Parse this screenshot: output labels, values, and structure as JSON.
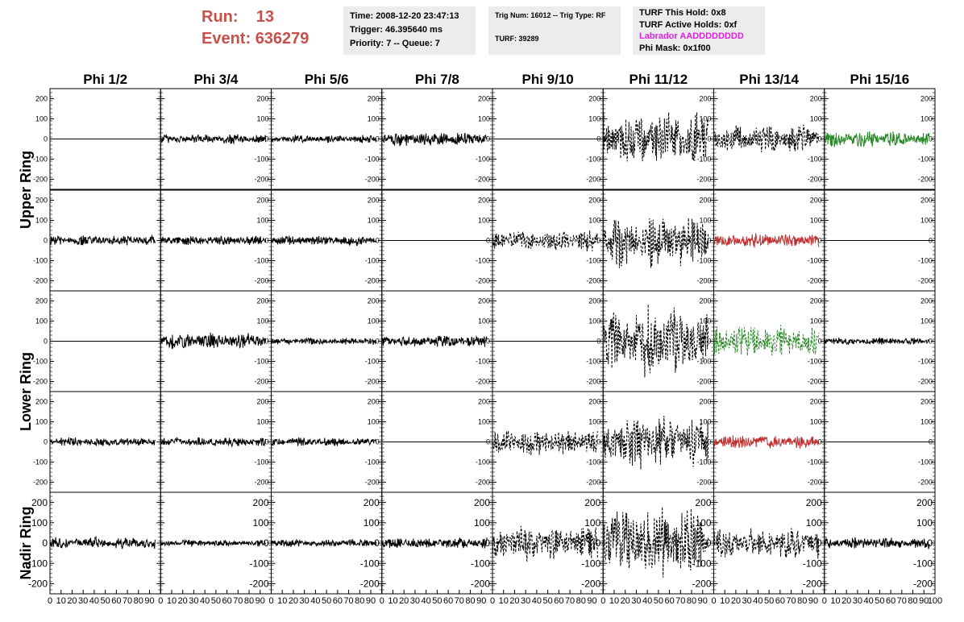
{
  "header": {
    "run_label": "Run:",
    "run_value": "13",
    "event_label": "Event:",
    "event_value": "636279"
  },
  "info_boxes": {
    "time": "Time: 2008-12-20 23:47:13",
    "trigger": "Trigger: 46.395640 ms",
    "priority": "Priority: 7 -- Queue: 7",
    "trig_num": "Trig Num: 16012 -- Trig Type: RF",
    "turf": "TURF: 39289",
    "turf_hold": "TURF This Hold: 0x8",
    "turf_active": "TURF Active Holds: 0xf",
    "labrador": "Labrador AADDDDDDDD",
    "phi_mask": "Phi Mask: 0x1f00"
  },
  "colors": {
    "run_text": "#c8504a",
    "labrador_text": "#e020e0",
    "info_bg": "#ececec",
    "trace_default": "#000000",
    "trace_green": "#2a8a2a",
    "trace_red": "#c03030"
  },
  "chart_data": {
    "type": "line",
    "columns": [
      "Phi 1/2",
      "Phi 3/4",
      "Phi 5/6",
      "Phi 7/8",
      "Phi 9/10",
      "Phi 11/12",
      "Phi 13/14",
      "Phi 15/16"
    ],
    "ring_labels": [
      {
        "label": "Upper Ring",
        "rows": [
          0,
          1
        ]
      },
      {
        "label": "Lower Ring",
        "rows": [
          2,
          3
        ]
      },
      {
        "label": "Nadir Ring",
        "rows": [
          4
        ]
      }
    ],
    "xlim": [
      0,
      100
    ],
    "ylim": [
      -250,
      250
    ],
    "ytick_values": [
      -200,
      -100,
      0,
      100,
      200
    ],
    "ytick_labels": [
      "-200",
      "-100",
      "0",
      "100",
      "200"
    ],
    "xtick_labels": [
      "0",
      "10",
      "20",
      "30",
      "40",
      "50",
      "60",
      "70",
      "80",
      "90",
      "100"
    ],
    "grid": false,
    "panels": [
      [
        {
          "amp": 0,
          "style": "solid",
          "color": "trace_default"
        },
        {
          "amp": 28,
          "style": "solid",
          "color": "trace_default"
        },
        {
          "amp": 22,
          "style": "solid",
          "color": "trace_default"
        },
        {
          "amp": 40,
          "style": "solid",
          "color": "trace_default"
        },
        {
          "amp": 0,
          "style": "solid",
          "color": "trace_default"
        },
        {
          "amp": 150,
          "style": "dashed",
          "color": "trace_default"
        },
        {
          "amp": 80,
          "style": "dashed",
          "color": "trace_default"
        },
        {
          "amp": 45,
          "style": "solid",
          "color": "trace_green"
        }
      ],
      [
        {
          "amp": 30,
          "style": "solid",
          "color": "trace_default"
        },
        {
          "amp": 28,
          "style": "solid",
          "color": "trace_default"
        },
        {
          "amp": 28,
          "style": "solid",
          "color": "trace_default"
        },
        {
          "amp": 0,
          "style": "solid",
          "color": "trace_default"
        },
        {
          "amp": 60,
          "style": "dashed",
          "color": "trace_default"
        },
        {
          "amp": 150,
          "style": "dashed",
          "color": "trace_default"
        },
        {
          "amp": 40,
          "style": "solid",
          "color": "trace_red"
        },
        {
          "amp": 0,
          "style": "solid",
          "color": "trace_default"
        }
      ],
      [
        {
          "amp": 0,
          "style": "solid",
          "color": "trace_default"
        },
        {
          "amp": 45,
          "style": "solid",
          "color": "trace_default"
        },
        {
          "amp": 20,
          "style": "solid",
          "color": "trace_default"
        },
        {
          "amp": 35,
          "style": "solid",
          "color": "trace_default"
        },
        {
          "amp": 0,
          "style": "solid",
          "color": "trace_default"
        },
        {
          "amp": 190,
          "style": "dashed",
          "color": "trace_default"
        },
        {
          "amp": 90,
          "style": "dashed",
          "color": "trace_green"
        },
        {
          "amp": 20,
          "style": "solid",
          "color": "trace_default"
        }
      ],
      [
        {
          "amp": 25,
          "style": "solid",
          "color": "trace_default"
        },
        {
          "amp": 25,
          "style": "solid",
          "color": "trace_default"
        },
        {
          "amp": 25,
          "style": "solid",
          "color": "trace_default"
        },
        {
          "amp": 0,
          "style": "solid",
          "color": "trace_default"
        },
        {
          "amp": 75,
          "style": "dashed",
          "color": "trace_default"
        },
        {
          "amp": 150,
          "style": "dashed",
          "color": "trace_default"
        },
        {
          "amp": 40,
          "style": "solid",
          "color": "trace_red"
        },
        {
          "amp": 0,
          "style": "solid",
          "color": "trace_default"
        }
      ],
      [
        {
          "amp": 35,
          "style": "solid",
          "color": "trace_default"
        },
        {
          "amp": 18,
          "style": "solid",
          "color": "trace_default"
        },
        {
          "amp": 22,
          "style": "solid",
          "color": "trace_default"
        },
        {
          "amp": 32,
          "style": "solid",
          "color": "trace_default"
        },
        {
          "amp": 95,
          "style": "dashed",
          "color": "trace_default"
        },
        {
          "amp": 200,
          "style": "dashed",
          "color": "trace_default"
        },
        {
          "amp": 90,
          "style": "dashed",
          "color": "trace_default"
        },
        {
          "amp": 32,
          "style": "solid",
          "color": "trace_default"
        }
      ]
    ]
  }
}
